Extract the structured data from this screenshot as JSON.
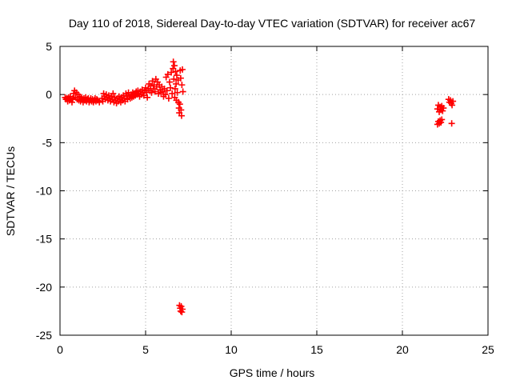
{
  "chart_data": {
    "type": "scatter",
    "title": "Day 110 of 2018, Sidereal Day-to-day VTEC variation (SDTVAR) for receiver ac67",
    "xlabel": "GPS time / hours",
    "ylabel": "SDTVAR / TECUs",
    "xlim": [
      0,
      25
    ],
    "ylim": [
      -25,
      5
    ],
    "xticks": [
      0,
      5,
      10,
      15,
      20,
      25
    ],
    "yticks": [
      5,
      0,
      -5,
      -10,
      -15,
      -20,
      -25
    ],
    "grid": true,
    "marker": "plus",
    "series": [
      {
        "name": "SDTVAR",
        "color": "#ff0000",
        "points": [
          [
            0.3,
            -0.3
          ],
          [
            0.35,
            -0.5
          ],
          [
            0.4,
            -0.4
          ],
          [
            0.45,
            -0.7
          ],
          [
            0.5,
            -0.3
          ],
          [
            0.55,
            -0.6
          ],
          [
            0.6,
            -0.2
          ],
          [
            0.65,
            -0.5
          ],
          [
            0.7,
            -0.8
          ],
          [
            0.75,
            -0.4
          ],
          [
            0.8,
            0.1
          ],
          [
            0.85,
            0.4
          ],
          [
            0.9,
            -0.3
          ],
          [
            0.95,
            0.2
          ],
          [
            1.0,
            -0.5
          ],
          [
            1.05,
            0.0
          ],
          [
            1.1,
            -0.6
          ],
          [
            1.15,
            -0.2
          ],
          [
            1.2,
            -0.7
          ],
          [
            1.25,
            -0.3
          ],
          [
            1.3,
            -0.5
          ],
          [
            1.35,
            -0.8
          ],
          [
            1.4,
            -0.4
          ],
          [
            1.45,
            -0.6
          ],
          [
            1.5,
            -0.3
          ],
          [
            1.55,
            -0.7
          ],
          [
            1.6,
            -0.5
          ],
          [
            1.65,
            -0.4
          ],
          [
            1.7,
            -0.8
          ],
          [
            1.75,
            -0.6
          ],
          [
            1.8,
            -0.4
          ],
          [
            1.85,
            -0.7
          ],
          [
            1.9,
            -0.5
          ],
          [
            1.95,
            -0.8
          ],
          [
            2.0,
            -0.6
          ],
          [
            2.05,
            -0.4
          ],
          [
            2.1,
            -0.7
          ],
          [
            2.15,
            -0.5
          ],
          [
            2.2,
            -0.6
          ],
          [
            2.3,
            -0.8
          ],
          [
            2.45,
            -0.4
          ],
          [
            2.5,
            -0.7
          ],
          [
            2.55,
            0.1
          ],
          [
            2.6,
            -0.2
          ],
          [
            2.65,
            -0.5
          ],
          [
            2.7,
            0.0
          ],
          [
            2.75,
            -0.3
          ],
          [
            2.8,
            -0.6
          ],
          [
            2.85,
            -0.1
          ],
          [
            2.9,
            -0.4
          ],
          [
            2.95,
            -0.7
          ],
          [
            3.0,
            -0.2
          ],
          [
            3.05,
            -0.5
          ],
          [
            3.1,
            0.1
          ],
          [
            3.15,
            -0.8
          ],
          [
            3.2,
            -0.3
          ],
          [
            3.25,
            -0.6
          ],
          [
            3.3,
            -0.9
          ],
          [
            3.35,
            -0.4
          ],
          [
            3.4,
            -0.7
          ],
          [
            3.45,
            -0.2
          ],
          [
            3.5,
            -0.5
          ],
          [
            3.55,
            -0.8
          ],
          [
            3.6,
            -0.3
          ],
          [
            3.65,
            -0.6
          ],
          [
            3.7,
            -0.1
          ],
          [
            3.75,
            -0.4
          ],
          [
            3.8,
            -0.7
          ],
          [
            3.85,
            0.1
          ],
          [
            3.9,
            -0.2
          ],
          [
            3.95,
            -0.5
          ],
          [
            4.0,
            0.2
          ],
          [
            4.05,
            -0.1
          ],
          [
            4.1,
            -0.4
          ],
          [
            4.15,
            0.0
          ],
          [
            4.2,
            -0.3
          ],
          [
            4.25,
            0.2
          ],
          [
            4.3,
            -0.2
          ],
          [
            4.35,
            0.1
          ],
          [
            4.4,
            -0.1
          ],
          [
            4.45,
            0.3
          ],
          [
            4.5,
            0.0
          ],
          [
            4.55,
            0.4
          ],
          [
            4.6,
            0.1
          ],
          [
            4.65,
            -0.2
          ],
          [
            4.7,
            0.3
          ],
          [
            4.75,
            0.0
          ],
          [
            4.8,
            0.5
          ],
          [
            4.85,
            0.2
          ],
          [
            4.9,
            -0.1
          ],
          [
            4.95,
            0.4
          ],
          [
            5.0,
            0.7
          ],
          [
            5.05,
            0.2
          ],
          [
            5.1,
            -0.3
          ],
          [
            5.15,
            0.6
          ],
          [
            5.2,
            1.1
          ],
          [
            5.25,
            0.4
          ],
          [
            5.3,
            0.9
          ],
          [
            5.35,
            0.2
          ],
          [
            5.4,
            1.4
          ],
          [
            5.45,
            0.6
          ],
          [
            5.5,
            1.0
          ],
          [
            5.55,
            0.3
          ],
          [
            5.6,
            1.6
          ],
          [
            5.65,
            0.8
          ],
          [
            5.7,
            1.3
          ],
          [
            5.75,
            0.1
          ],
          [
            5.8,
            1.0
          ],
          [
            5.85,
            0.5
          ],
          [
            5.9,
            0.2
          ],
          [
            5.95,
            0.8
          ],
          [
            6.0,
            0.3
          ],
          [
            6.05,
            -0.2
          ],
          [
            6.1,
            0.6
          ],
          [
            6.15,
            0.0
          ],
          [
            6.2,
            1.8
          ],
          [
            6.25,
            0.4
          ],
          [
            6.3,
            2.1
          ],
          [
            6.35,
            -0.4
          ],
          [
            6.4,
            1.3
          ],
          [
            6.45,
            0.7
          ],
          [
            6.5,
            2.3
          ],
          [
            6.55,
            0.1
          ],
          [
            6.6,
            2.7
          ],
          [
            6.62,
            3.4
          ],
          [
            6.65,
            1.6
          ],
          [
            6.68,
            3.0
          ],
          [
            6.7,
            -0.3
          ],
          [
            6.72,
            0.6
          ],
          [
            6.75,
            2.4
          ],
          [
            6.78,
            1.1
          ],
          [
            6.8,
            -0.6
          ],
          [
            6.82,
            2.0
          ],
          [
            6.85,
            0.2
          ],
          [
            6.9,
            1.5
          ],
          [
            6.92,
            -0.8
          ],
          [
            6.95,
            -1.4
          ],
          [
            6.97,
            -1.9
          ],
          [
            7.0,
            -1.0
          ],
          [
            7.02,
            2.5
          ],
          [
            7.05,
            1.7
          ],
          [
            7.07,
            -1.6
          ],
          [
            7.1,
            -2.2
          ],
          [
            7.12,
            1.0
          ],
          [
            7.15,
            2.6
          ],
          [
            7.18,
            0.3
          ],
          [
            6.98,
            -21.9
          ],
          [
            7.02,
            -22.2
          ],
          [
            7.05,
            -22.5
          ],
          [
            7.08,
            -22.0
          ],
          [
            7.12,
            -22.6
          ],
          [
            7.15,
            -22.3
          ],
          [
            22.05,
            -1.5
          ],
          [
            22.1,
            -1.1
          ],
          [
            22.15,
            -1.8
          ],
          [
            22.2,
            -1.3
          ],
          [
            22.25,
            -1.6
          ],
          [
            22.3,
            -1.2
          ],
          [
            22.35,
            -1.7
          ],
          [
            22.4,
            -1.4
          ],
          [
            22.05,
            -3.1
          ],
          [
            22.1,
            -2.8
          ],
          [
            22.15,
            -3.0
          ],
          [
            22.2,
            -2.7
          ],
          [
            22.25,
            -2.9
          ],
          [
            22.3,
            -2.6
          ],
          [
            22.7,
            -0.5
          ],
          [
            22.75,
            -0.8
          ],
          [
            22.8,
            -0.6
          ],
          [
            22.85,
            -0.9
          ],
          [
            22.9,
            -1.1
          ],
          [
            22.95,
            -0.7
          ],
          [
            22.88,
            -3.0
          ]
        ]
      }
    ]
  }
}
